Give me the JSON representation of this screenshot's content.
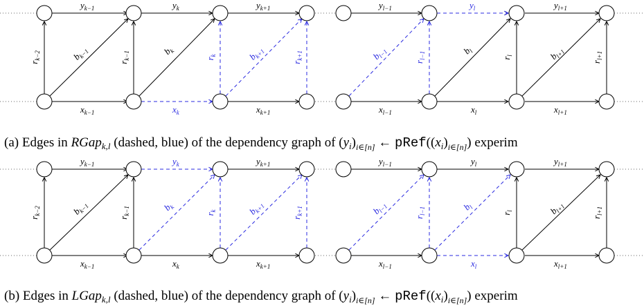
{
  "colors": {
    "black": "#000000",
    "blue": "#2a2ae0"
  },
  "labels": {
    "y_km1": "y",
    "y_km1_sub": "k−1",
    "y_k": "y",
    "y_k_sub": "k",
    "y_kp1": "y",
    "y_kp1_sub": "k+1",
    "y_lm1": "y",
    "y_lm1_sub": "l−1",
    "y_l": "y",
    "y_l_sub": "l",
    "y_lp1": "y",
    "y_lp1_sub": "l+1",
    "x_km1": "x",
    "x_km1_sub": "k−1",
    "x_k": "x",
    "x_k_sub": "k",
    "x_kp1": "x",
    "x_kp1_sub": "k+1",
    "x_lm1": "x",
    "x_lm1_sub": "l−1",
    "x_l": "x",
    "x_l_sub": "l",
    "x_lp1": "x",
    "x_lp1_sub": "l+1",
    "r_km2": "r",
    "r_km2_sub": "k−2",
    "r_km1": "r",
    "r_km1_sub": "k−1",
    "r_k": "r",
    "r_k_sub": "k",
    "r_kp1": "r",
    "r_kp1_sub": "k+1",
    "r_lm1": "r",
    "r_lm1_sub": "l−1",
    "r_l": "r",
    "r_l_sub": "l",
    "r_lp1": "r",
    "r_lp1_sub": "l+1",
    "b_km1": "b",
    "b_km1_sub": "k−1",
    "b_k": "b",
    "b_k_sub": "k",
    "b_kp1": "b",
    "b_kp1_sub": "k+1",
    "b_lm1": "b",
    "b_lm1_sub": "l−1",
    "b_l": "b",
    "b_l_sub": "l",
    "b_lp1": "b",
    "b_lp1_sub": "l+1"
  },
  "captions": {
    "a": {
      "prefix": "(a) Edges in ",
      "set": "RGap",
      "set_sub": "k,l",
      "middle": " (dashed, blue) of the dependency graph of (",
      "yi": "y",
      "yi_sub": "i",
      "idx": "i∈[n]",
      "arrow": ") ← ",
      "func": "pRef",
      "open": "((",
      "xi": "x",
      "xi_sub": "i",
      "close": ")",
      "idx2": "i∈[n]",
      "end": ") experim"
    },
    "b": {
      "prefix": "(b) Edges in ",
      "set": "LGap",
      "set_sub": "k,l",
      "middle": " (dashed, blue) of the dependency graph of (",
      "yi": "y",
      "yi_sub": "i",
      "idx": "i∈[n]",
      "arrow": ") ← ",
      "func": "pRef",
      "open": "((",
      "xi": "x",
      "xi_sub": "i",
      "close": ")",
      "idx2": "i∈[n]",
      "end": ") experim"
    }
  }
}
